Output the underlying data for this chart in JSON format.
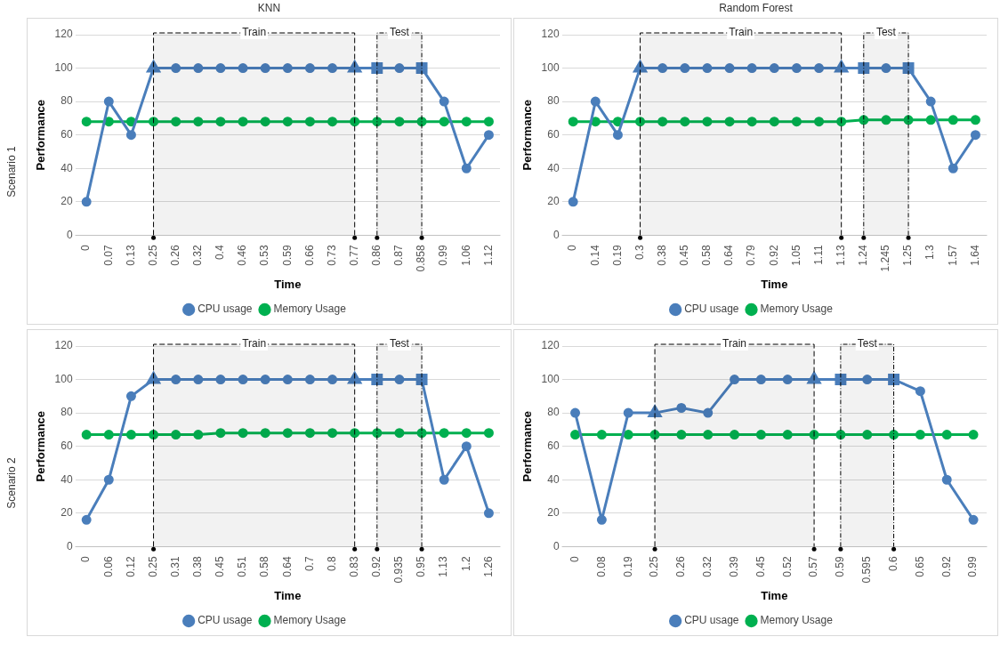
{
  "chart_data": [
    {
      "type": "line",
      "title": "KNN",
      "annotations": [
        "Scenario 1"
      ],
      "xlabel": "Time",
      "ylabel": "Performance",
      "categories": [
        "0",
        "0.07",
        "0.13",
        "0.25",
        "0.26",
        "0.32",
        "0.4",
        "0.46",
        "0.53",
        "0.59",
        "0.66",
        "0.73",
        "0.77",
        "0.86",
        "0.87",
        "0.858",
        "0.99",
        "1.06",
        "1.12"
      ],
      "series": [
        {
          "name": "CPU usage",
          "color": "#4a7ebb",
          "values": [
            20,
            80,
            60,
            100,
            100,
            100,
            100,
            100,
            100,
            100,
            100,
            100,
            100,
            100,
            100,
            100,
            80,
            40,
            60
          ]
        },
        {
          "name": "Memory Usage",
          "color": "#00b050",
          "values": [
            68,
            68,
            68,
            68,
            68,
            68,
            68,
            68,
            68,
            68,
            68,
            68,
            68,
            68,
            68,
            68,
            68,
            68,
            68
          ]
        }
      ],
      "bands": [
        {
          "axis": "x",
          "from": "0.25",
          "to": "0.77",
          "label": "Train"
        },
        {
          "axis": "x",
          "from": "0.86",
          "to": "0.858",
          "label": "Test"
        }
      ],
      "ylim": [
        0,
        120
      ],
      "yticks": [
        0,
        20,
        40,
        60,
        80,
        100,
        120
      ],
      "grid": "y",
      "legend": "bottom",
      "marker": "circle"
    },
    {
      "type": "line",
      "title": "Random Forest",
      "xlabel": "Time",
      "ylabel": "Performance",
      "categories": [
        "0",
        "0.14",
        "0.19",
        "0.3",
        "0.38",
        "0.45",
        "0.58",
        "0.64",
        "0.79",
        "0.92",
        "1.05",
        "1.11",
        "1.13",
        "1.24",
        "1.245",
        "1.25",
        "1.3",
        "1.57",
        "1.64"
      ],
      "series": [
        {
          "name": "CPU usage",
          "color": "#4a7ebb",
          "values": [
            20,
            80,
            60,
            100,
            100,
            100,
            100,
            100,
            100,
            100,
            100,
            100,
            100,
            100,
            100,
            100,
            80,
            40,
            60
          ]
        },
        {
          "name": "Memory Usage",
          "color": "#00b050",
          "values": [
            68,
            68,
            68,
            68,
            68,
            68,
            68,
            68,
            68,
            68,
            68,
            68,
            68,
            69,
            69,
            69,
            69,
            69,
            69
          ]
        }
      ],
      "bands": [
        {
          "axis": "x",
          "from": "0.3",
          "to": "1.13",
          "label": "Train"
        },
        {
          "axis": "x",
          "from": "1.24",
          "to": "1.25",
          "label": "Test"
        }
      ],
      "ylim": [
        0,
        120
      ],
      "yticks": [
        0,
        20,
        40,
        60,
        80,
        100,
        120
      ],
      "grid": "y",
      "legend": "bottom",
      "marker": "circle"
    },
    {
      "type": "line",
      "annotations": [
        "Scenario 2"
      ],
      "xlabel": "Time",
      "ylabel": "Performance",
      "categories": [
        "0",
        "0.06",
        "0.12",
        "0.25",
        "0.31",
        "0.38",
        "0.45",
        "0.51",
        "0.58",
        "0.64",
        "0.7",
        "0.8",
        "0.83",
        "0.92",
        "0.935",
        "0.95",
        "1.13",
        "1.2",
        "1.26"
      ],
      "series": [
        {
          "name": "CPU usage",
          "color": "#4a7ebb",
          "values": [
            16,
            40,
            90,
            100,
            100,
            100,
            100,
            100,
            100,
            100,
            100,
            100,
            100,
            100,
            100,
            100,
            40,
            60,
            20
          ]
        },
        {
          "name": "Memory Usage",
          "color": "#00b050",
          "values": [
            67,
            67,
            67,
            67,
            67,
            67,
            68,
            68,
            68,
            68,
            68,
            68,
            68,
            68,
            68,
            68,
            68,
            68,
            68
          ]
        }
      ],
      "bands": [
        {
          "axis": "x",
          "from": "0.25",
          "to": "0.83",
          "label": "Train"
        },
        {
          "axis": "x",
          "from": "0.92",
          "to": "0.95",
          "label": "Test"
        }
      ],
      "ylim": [
        0,
        120
      ],
      "yticks": [
        0,
        20,
        40,
        60,
        80,
        100,
        120
      ],
      "grid": "y",
      "legend": "bottom",
      "marker": "circle"
    },
    {
      "type": "line",
      "xlabel": "Time",
      "ylabel": "Performance",
      "categories": [
        "0",
        "0.08",
        "0.19",
        "0.25",
        "0.26",
        "0.32",
        "0.39",
        "0.45",
        "0.52",
        "0.57",
        "0.59",
        "0.595",
        "0.6",
        "0.65",
        "0.92",
        "0.99"
      ],
      "series": [
        {
          "name": "CPU usage",
          "color": "#4a7ebb",
          "values": [
            80,
            16,
            80,
            80,
            83,
            80,
            100,
            100,
            100,
            100,
            100,
            100,
            100,
            93,
            40,
            16
          ]
        },
        {
          "name": "Memory Usage",
          "color": "#00b050",
          "values": [
            67,
            67,
            67,
            67,
            67,
            67,
            67,
            67,
            67,
            67,
            67,
            67,
            67,
            67,
            67,
            67
          ]
        }
      ],
      "bands": [
        {
          "axis": "x",
          "from": "0.25",
          "to": "0.57",
          "label": "Train"
        },
        {
          "axis": "x",
          "from": "0.59",
          "to": "0.6",
          "label": "Test"
        }
      ],
      "ylim": [
        0,
        120
      ],
      "yticks": [
        0,
        20,
        40,
        60,
        80,
        100,
        120
      ],
      "grid": "y",
      "legend": "bottom",
      "marker": "circle"
    }
  ]
}
